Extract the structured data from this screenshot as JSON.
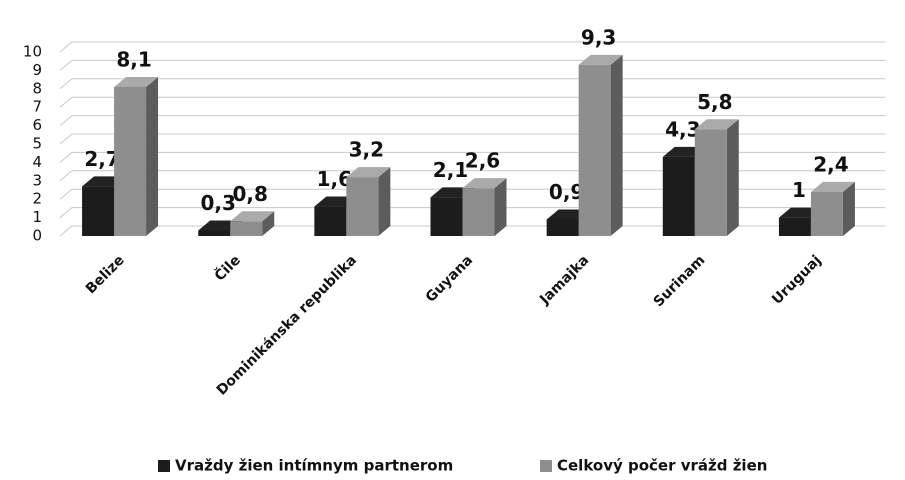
{
  "chart_data": {
    "type": "bar3d",
    "categories": [
      "Belize",
      "Čile",
      "Dominikánska republika",
      "Guyana",
      "Jamajka",
      "Surinam",
      "Uruguaj"
    ],
    "series": [
      {
        "name": "Vraždy žien intímnym partnerom",
        "color": "#1c1c1c",
        "values": [
          2.7,
          0.3,
          1.6,
          2.1,
          0.9,
          4.3,
          1
        ],
        "value_labels": [
          "2,7",
          "0,3",
          "1,6",
          "2,1",
          "0,9",
          "4,3",
          "1"
        ]
      },
      {
        "name": "Celkový počer vrážd žien",
        "color": "#8e8e8e",
        "values": [
          8.1,
          0.8,
          3.2,
          2.6,
          9.3,
          5.8,
          2.4
        ],
        "value_labels": [
          "8,1",
          "0,8",
          "3,2",
          "2,6",
          "9,3",
          "5,8",
          "2,4"
        ]
      }
    ],
    "ylim": [
      0,
      10
    ],
    "yticks": [
      0,
      1,
      2,
      3,
      4,
      5,
      6,
      7,
      8,
      9,
      10
    ],
    "grid": true,
    "legend": "bottom"
  }
}
